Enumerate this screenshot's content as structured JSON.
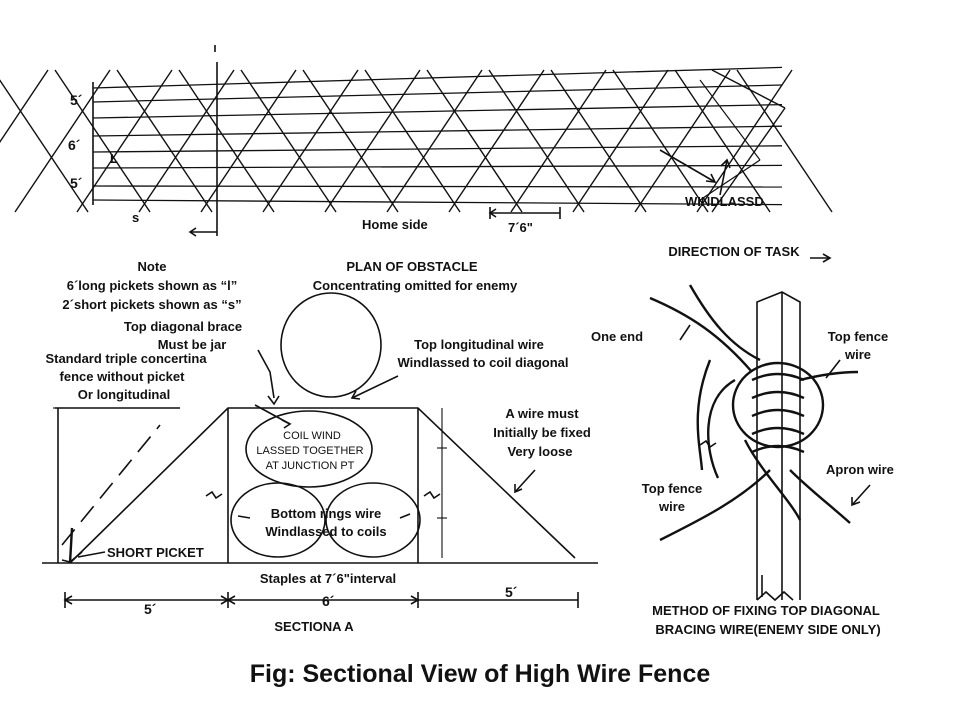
{
  "plan": {
    "dim_5a": "5´",
    "dim_6": "6´",
    "dim_5b": "5´",
    "mark_l": "L",
    "mark_s": "s",
    "home_side": "Home side",
    "spacing": "7´6\"",
    "windlassed": "WINDLASSD"
  },
  "notes": {
    "note_title": "Note",
    "note_line1": "6´long pickets shown as “l”",
    "note_line2": "2´short pickets shown as “s”",
    "plan_title": "PLAN OF OBSTACLE",
    "plan_subtitle": "Concentrating omitted for enemy"
  },
  "section": {
    "top_brace_1": "Top diagonal brace",
    "top_brace_2": "Must be jar",
    "standard_1": "Standard triple concertina",
    "standard_2": "fence without picket",
    "standard_3": "Or longitudinal",
    "top_long_1": "Top longitudinal wire",
    "top_long_2": "Windlassed to coil diagonal",
    "coil_1": "COIL WIND",
    "coil_2": "LASSED TOGETHER",
    "coil_3": "AT JUNCTION PT",
    "a_wire_1": "A wire must",
    "a_wire_2": "Initially be fixed",
    "a_wire_3": "Very loose",
    "bottom_1": "Bottom rings wire",
    "bottom_2": "Windlassed to coils",
    "short_picket": "SHORT PICKET",
    "staples": "Staples at 7´6\"interval",
    "dim_left": "5´",
    "dim_mid": "6´",
    "dim_right": "5´",
    "section_label": "SECTIONA A"
  },
  "detail": {
    "direction": "DIRECTION OF TASK",
    "one_end": "One end",
    "top_fence_1a": "Top fence",
    "top_fence_1b": "wire",
    "apron": "Apron wire",
    "top_fence_2a": "Top fence",
    "top_fence_2b": "wire",
    "method_1": "METHOD OF FIXING TOP DIAGONAL",
    "method_2": "BRACING WIRE(ENEMY SIDE ONLY)"
  },
  "caption": "Fig: Sectional View of High Wire Fence"
}
